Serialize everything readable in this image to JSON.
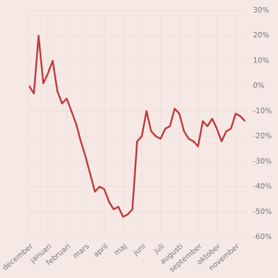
{
  "chart_data": {
    "type": "line",
    "categories": [
      "december",
      null,
      null,
      null,
      "januari",
      null,
      null,
      null,
      "februari",
      null,
      null,
      null,
      "mars",
      null,
      null,
      null,
      "april",
      null,
      null,
      null,
      "maj",
      null,
      null,
      null,
      "juni",
      null,
      null,
      null,
      "juli",
      null,
      null,
      null,
      "augusti",
      null,
      null,
      null,
      "september",
      null,
      null,
      null,
      "oktober",
      null,
      null,
      null,
      "november",
      null,
      null
    ],
    "values": [
      0,
      -3,
      20,
      1,
      5,
      10,
      -2,
      -7,
      -5,
      -10,
      -15,
      -22,
      -28,
      -35,
      -42,
      -40,
      -41,
      -46,
      -49,
      -48,
      -52,
      -51,
      -49,
      -22,
      -20,
      -10,
      -18,
      -20,
      -21,
      -17,
      -16,
      -9,
      -11,
      -18,
      -21,
      -22,
      -24,
      -14,
      -16,
      -13,
      -17,
      -22,
      -18,
      -17,
      -11,
      -12,
      -14
    ],
    "color": "#c0393b",
    "ylim": [
      -60,
      30
    ],
    "yticks": [
      {
        "value": 30,
        "label": "30%"
      },
      {
        "value": 20,
        "label": "20%"
      },
      {
        "value": 10,
        "label": "10%"
      },
      {
        "value": 0,
        "label": "0%"
      },
      {
        "value": -10,
        "label": "-10%"
      },
      {
        "value": -20,
        "label": "-20%"
      },
      {
        "value": -30,
        "label": "-30%"
      },
      {
        "value": -40,
        "label": "-40%"
      },
      {
        "value": -50,
        "label": "-50%"
      },
      {
        "value": -60,
        "label": "-60%"
      }
    ],
    "grid": true
  }
}
